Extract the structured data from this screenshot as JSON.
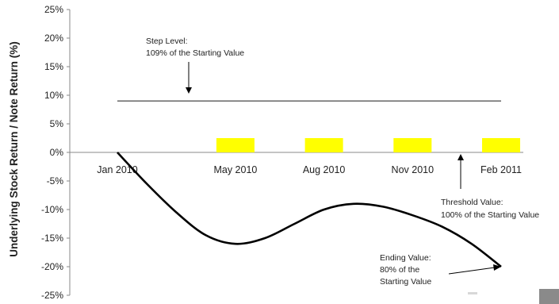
{
  "chart_data": {
    "type": "line",
    "title": "",
    "xlabel": "",
    "ylabel": "Underlying Stock Return / Note Return (%)",
    "ylim": [
      -25,
      25
    ],
    "y_ticks": [
      "25%",
      "20%",
      "15%",
      "10%",
      "5%",
      "0%",
      "-5%",
      "-10%",
      "-15%",
      "-20%",
      "-25%"
    ],
    "y_tick_values": [
      25,
      20,
      15,
      10,
      5,
      0,
      -5,
      -10,
      -15,
      -20,
      -25
    ],
    "x_ticks": [
      "Jan 2010",
      "May 2010",
      "Aug 2010",
      "Nov 2010",
      "Feb 2011"
    ],
    "x_tick_positions": [
      0,
      4,
      7,
      10,
      13
    ],
    "xlim": [
      0,
      13
    ],
    "step_level": {
      "value": 9,
      "x_range": [
        0,
        13
      ]
    },
    "threshold_level": {
      "value": 0
    },
    "coupons": [
      {
        "x": 4,
        "value": 2.5
      },
      {
        "x": 7,
        "value": 2.5
      },
      {
        "x": 10,
        "value": 2.5
      },
      {
        "x": 13,
        "value": 2.5
      }
    ],
    "series": [
      {
        "x": [
          0,
          1,
          2,
          3,
          4,
          5,
          6,
          7,
          8,
          9,
          10,
          11,
          12,
          13
        ],
        "values": [
          0,
          -5.5,
          -10.5,
          -14.5,
          -16,
          -15,
          -12.5,
          -10,
          -9,
          -9.5,
          -11,
          -13,
          -16,
          -20
        ]
      }
    ],
    "grid": false,
    "legend": "none",
    "annotations": [
      {
        "lines": [
          "Step Level:",
          "109% of the Starting Value"
        ]
      },
      {
        "lines": [
          "Threshold Value:",
          "100% of the Starting Value"
        ]
      },
      {
        "lines": [
          "Ending Value:",
          "80% of the",
          "Starting Value"
        ]
      }
    ],
    "colors": {
      "line": "#000000",
      "step": "#333333",
      "coupon": "#ffff00",
      "axis": "#888888"
    }
  }
}
